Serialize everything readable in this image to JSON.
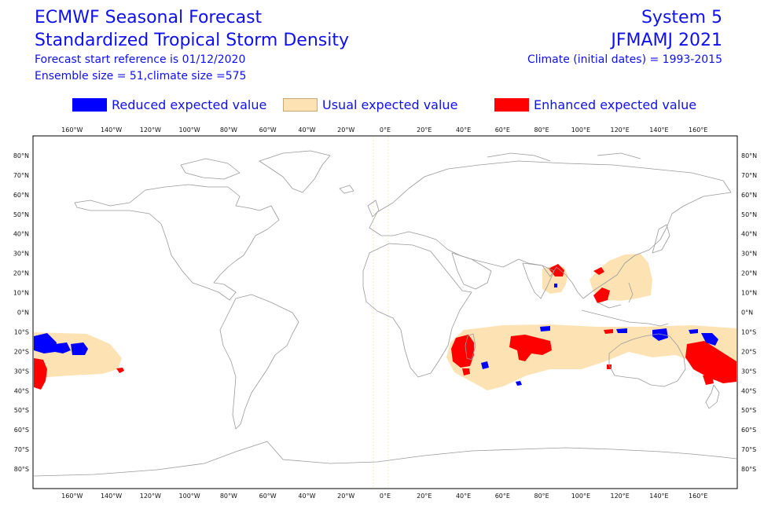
{
  "header": {
    "title_line1": "ECMWF Seasonal Forecast",
    "title_line2": "Standardized Tropical Storm Density",
    "forecast_start": "Forecast start reference is 01/12/2020",
    "ensemble": "Ensemble size = 51,climate size =575",
    "system": "System 5",
    "period": "JFMAMJ 2021",
    "climate": "Climate (initial dates) = 1993-2015"
  },
  "legend": [
    {
      "label": "Reduced expected value",
      "color": "#0000ff"
    },
    {
      "label": "Usual expected value",
      "color": "#fde3b4"
    },
    {
      "label": "Enhanced expected value",
      "color": "#ff0000"
    }
  ],
  "colors": {
    "reduced": "#0000ff",
    "usual": "#fde3b4",
    "enhanced": "#ff0000",
    "coast": "#9a9a9a",
    "frame": "#000000"
  },
  "map": {
    "lon_range": [
      -180,
      180
    ],
    "lat_range": [
      -90,
      90
    ],
    "lon_ticks": [
      "160°W",
      "140°W",
      "120°W",
      "100°W",
      "80°W",
      "60°W",
      "40°W",
      "20°W",
      "0°E",
      "20°E",
      "40°E",
      "60°E",
      "80°E",
      "100°E",
      "120°E",
      "140°E",
      "160°E"
    ],
    "lon_tick_values": [
      -160,
      -140,
      -120,
      -100,
      -80,
      -60,
      -40,
      -20,
      0,
      20,
      40,
      60,
      80,
      100,
      120,
      140,
      160
    ],
    "lat_ticks": [
      "80°N",
      "70°N",
      "60°N",
      "50°N",
      "40°N",
      "30°N",
      "20°N",
      "10°N",
      "0°N",
      "10°S",
      "20°S",
      "30°S",
      "40°S",
      "50°S",
      "60°S",
      "70°S",
      "80°S"
    ],
    "lat_tick_values": [
      80,
      70,
      60,
      50,
      40,
      30,
      20,
      10,
      0,
      -10,
      -20,
      -30,
      -40,
      -50,
      -60,
      -70,
      -80
    ]
  }
}
